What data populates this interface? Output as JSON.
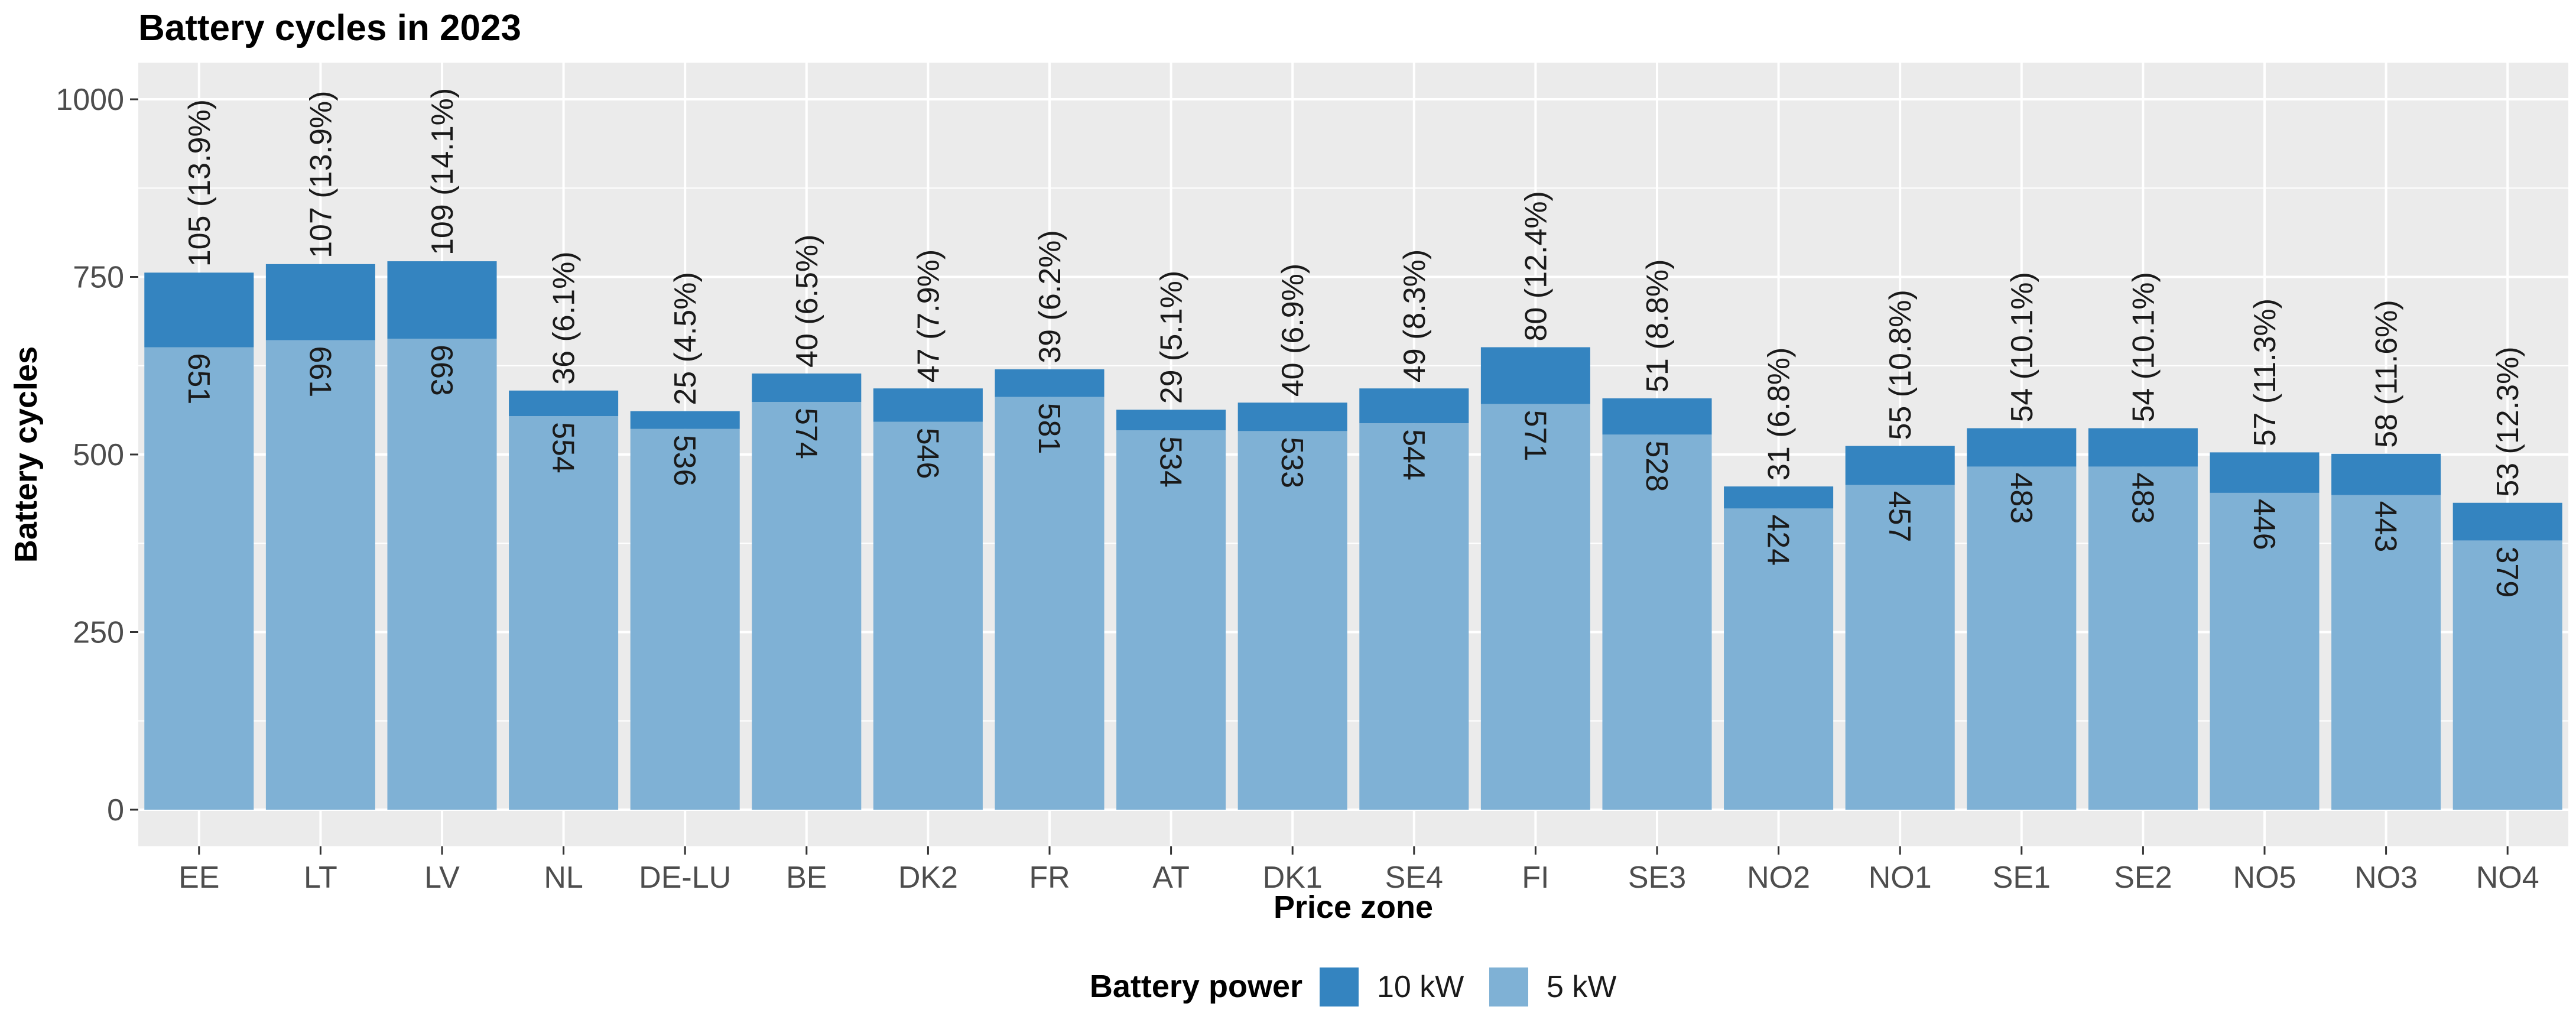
{
  "chart_data": {
    "type": "bar",
    "stacked": true,
    "title": "Battery cycles in 2023",
    "xlabel": "Price zone",
    "ylabel": "Battery cycles",
    "ylim": [
      0,
      1050
    ],
    "yticks": [
      0,
      250,
      500,
      750,
      1000
    ],
    "yticks_labels": [
      "0",
      "250",
      "500",
      "750",
      "1000"
    ],
    "categories": [
      "EE",
      "LT",
      "LV",
      "NL",
      "DE-LU",
      "BE",
      "DK2",
      "FR",
      "AT",
      "DK1",
      "SE4",
      "FI",
      "SE3",
      "NO2",
      "NO1",
      "SE1",
      "SE2",
      "NO5",
      "NO3",
      "NO4"
    ],
    "series": [
      {
        "name": "5 kW",
        "color": "#7fb1d5",
        "values": [
          651,
          661,
          663,
          554,
          536,
          574,
          546,
          581,
          534,
          533,
          544,
          571,
          528,
          424,
          457,
          483,
          483,
          446,
          443,
          379
        ],
        "labels": [
          "651",
          "661",
          "663",
          "554",
          "536",
          "574",
          "546",
          "581",
          "534",
          "533",
          "544",
          "571",
          "528",
          "424",
          "457",
          "483",
          "483",
          "446",
          "443",
          "379"
        ]
      },
      {
        "name": "10 kW",
        "color": "#3484c0",
        "values": [
          105,
          107,
          109,
          36,
          25,
          40,
          47,
          39,
          29,
          40,
          49,
          80,
          51,
          31,
          55,
          54,
          54,
          57,
          58,
          53
        ],
        "labels": [
          "105 (13.9%)",
          "107 (13.9%)",
          "109 (14.1%)",
          "36 (6.1%)",
          "25 (4.5%)",
          "40 (6.5%)",
          "47 (7.9%)",
          "39 (6.2%)",
          "29 (5.1%)",
          "40 (6.9%)",
          "49 (8.3%)",
          "80 (12.4%)",
          "51 (8.8%)",
          "31 (6.8%)",
          "55 (10.8%)",
          "54 (10.1%)",
          "54 (10.1%)",
          "57 (11.3%)",
          "58 (11.6%)",
          "53 (12.3%)"
        ]
      }
    ],
    "legend": {
      "title": "Battery power",
      "position": "bottom",
      "entries": [
        {
          "label": "10 kW",
          "color": "#3484c0"
        },
        {
          "label": "5 kW",
          "color": "#7fb1d5"
        }
      ]
    },
    "grid": true,
    "panel_background": "#ebebeb"
  }
}
